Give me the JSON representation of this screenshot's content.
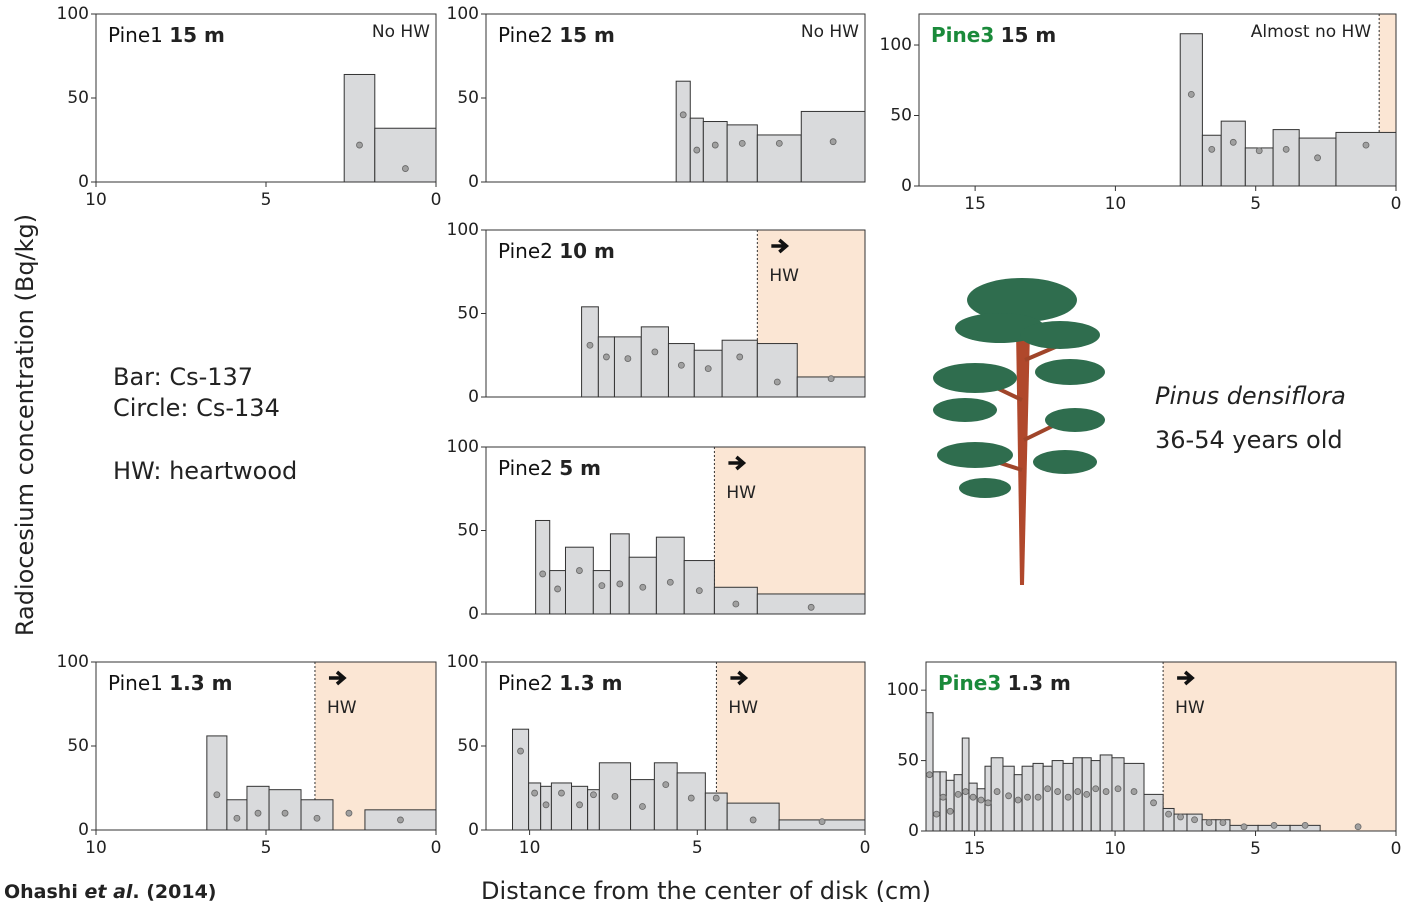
{
  "y_label": "Radiocesium concentration (Bq/kg)",
  "x_label": "Distance from the center of disk (cm)",
  "legend_text": [
    "Bar: Cs-137",
    "Circle: Cs-134",
    "HW: heartwood"
  ],
  "species": "Pinus densiflora",
  "age": "36-54 years old",
  "citation": {
    "author": "Ohashi",
    "etal": "et al",
    "year": ". (2014)"
  },
  "chart_data": [
    {
      "type": "histogram",
      "tree": "Pine1",
      "height": "15 m",
      "title_color": "#111111",
      "annotation": "No HW",
      "xlim": [
        10,
        0
      ],
      "xticks": [
        10,
        5,
        0
      ],
      "ylim": [
        0,
        100
      ],
      "yticks": [
        0,
        50,
        100
      ],
      "bins": [
        2.7,
        1.8,
        0
      ],
      "series": [
        {
          "color": "#d9dadc",
          "values": [
            64,
            32
          ]
        },
        {
          "color": "#a0a0a0",
          "values": [
            22,
            8
          ]
        }
      ]
    },
    {
      "type": "histogram",
      "tree": "Pine2",
      "height": "15 m",
      "title_color": "#111111",
      "annotation": "No HW",
      "xlim": [
        11.3,
        0
      ],
      "ylim": [
        0,
        100
      ],
      "yticks": [
        0,
        50,
        100
      ],
      "bins": [
        5.63,
        5.21,
        4.82,
        4.11,
        3.21,
        1.9,
        0
      ],
      "series": [
        {
          "color": "#d9dadc",
          "values": [
            60,
            38,
            36,
            34,
            28,
            42
          ]
        },
        {
          "color": "#a0a0a0",
          "values": [
            40,
            19,
            22,
            23,
            23,
            24
          ]
        }
      ]
    },
    {
      "type": "histogram",
      "tree": "Pine3",
      "height": "15 m",
      "title_color": "#1a8a3a",
      "annotation": "Almost no HW",
      "heartwood_from": 0.6,
      "heartwood_color": "#fbe6d4",
      "xlim": [
        17,
        0
      ],
      "xticks": [
        15,
        10,
        5,
        0
      ],
      "ylim": [
        0,
        122
      ],
      "yticks": [
        0,
        50,
        100
      ],
      "bins": [
        7.69,
        6.9,
        6.23,
        5.37,
        4.38,
        3.45,
        2.14,
        0
      ],
      "series": [
        {
          "color": "#d9dadc",
          "values": [
            108,
            36,
            46,
            27,
            40,
            34,
            38
          ]
        },
        {
          "color": "#a0a0a0",
          "values": [
            65,
            26,
            31,
            25,
            26,
            20,
            29
          ]
        }
      ]
    },
    {
      "type": "histogram",
      "tree": "Pine2",
      "height": "10 m",
      "title_color": "#111111",
      "annotation": "HW",
      "heartwood_from": 3.21,
      "heartwood_color": "#fbe6d4",
      "xlim": [
        11.3,
        0
      ],
      "ylim": [
        0,
        100
      ],
      "yticks": [
        0,
        50,
        100
      ],
      "bins": [
        8.45,
        7.95,
        7.47,
        6.67,
        5.86,
        5.09,
        4.26,
        3.21,
        2.02,
        0
      ],
      "series": [
        {
          "color": "#d9dadc",
          "values": [
            54,
            36,
            36,
            42,
            32,
            28,
            34,
            32,
            12
          ]
        },
        {
          "color": "#a0a0a0",
          "values": [
            31,
            24,
            23,
            27,
            19,
            17,
            24,
            9,
            11
          ]
        }
      ]
    },
    {
      "type": "histogram",
      "tree": "Pine2",
      "height": "5 m",
      "title_color": "#111111",
      "annotation": "HW",
      "heartwood_from": 4.49,
      "heartwood_color": "#fbe6d4",
      "xlim": [
        11.3,
        0
      ],
      "ylim": [
        0,
        100
      ],
      "yticks": [
        0,
        50,
        100
      ],
      "bins": [
        9.82,
        9.4,
        8.93,
        8.1,
        7.59,
        7.03,
        6.22,
        5.39,
        4.49,
        3.21,
        0
      ],
      "series": [
        {
          "color": "#d9dadc",
          "values": [
            56,
            26,
            40,
            26,
            48,
            34,
            46,
            32,
            16,
            12
          ]
        },
        {
          "color": "#a0a0a0",
          "values": [
            24,
            15,
            26,
            17,
            18,
            16,
            19,
            14,
            6,
            4
          ]
        }
      ]
    },
    {
      "type": "histogram",
      "tree": "Pine1",
      "height": "1.3 m",
      "title_color": "#111111",
      "annotation": "HW",
      "heartwood_from": 3.56,
      "heartwood_color": "#fbe6d4",
      "xlim": [
        10,
        0
      ],
      "xticks": [
        10,
        5,
        0
      ],
      "ylim": [
        0,
        100
      ],
      "yticks": [
        0,
        50,
        100
      ],
      "bins": [
        6.74,
        6.15,
        5.56,
        4.91,
        3.97,
        3.03,
        2.09,
        0
      ],
      "series": [
        {
          "color": "#d9dadc",
          "values": [
            56,
            18,
            26,
            24,
            18,
            null,
            12
          ]
        },
        {
          "color": "#a0a0a0",
          "values": [
            21,
            7,
            10,
            10,
            7,
            10,
            6
          ]
        }
      ]
    },
    {
      "type": "histogram",
      "tree": "Pine2",
      "height": "1.3 m",
      "title_color": "#111111",
      "annotation": "HW",
      "heartwood_from": 4.43,
      "heartwood_color": "#fbe6d4",
      "xlim": [
        11.3,
        0
      ],
      "xticks": [
        10,
        5,
        0
      ],
      "ylim": [
        0,
        100
      ],
      "yticks": [
        0,
        50,
        100
      ],
      "bins": [
        10.51,
        10.03,
        9.67,
        9.35,
        8.75,
        8.27,
        7.92,
        6.99,
        6.28,
        5.6,
        4.76,
        4.11,
        2.56,
        0
      ],
      "series": [
        {
          "color": "#d9dadc",
          "values": [
            60,
            28,
            26,
            28,
            26,
            24,
            40,
            30,
            40,
            34,
            22,
            16,
            6
          ]
        },
        {
          "color": "#a0a0a0",
          "values": [
            47,
            22,
            15,
            22,
            15,
            21,
            20,
            14,
            27,
            19,
            19,
            6,
            5
          ]
        }
      ]
    },
    {
      "type": "histogram",
      "tree": "Pine3",
      "height": "1.3 m",
      "title_color": "#1a8a3a",
      "annotation": "HW",
      "heartwood_from": 8.29,
      "heartwood_color": "#fbe6d4",
      "xlim": [
        16.73,
        0
      ],
      "xticks": [
        15,
        10,
        5,
        0
      ],
      "ylim": [
        0,
        120
      ],
      "yticks": [
        0,
        50,
        100
      ],
      "bins": [
        16.73,
        16.48,
        16.23,
        16.01,
        15.73,
        15.44,
        15.2,
        14.91,
        14.63,
        14.41,
        13.99,
        13.59,
        13.31,
        12.92,
        12.56,
        12.24,
        11.85,
        11.49,
        11.17,
        10.85,
        10.53,
        10.11,
        9.68,
        8.97,
        8.29,
        7.9,
        7.44,
        6.9,
        6.41,
        5.91,
        4.91,
        3.77,
        2.7,
        0
      ],
      "series": [
        {
          "color": "#d9dadc",
          "values": [
            84,
            42,
            42,
            36,
            40,
            66,
            34,
            30,
            46,
            52,
            46,
            40,
            46,
            48,
            46,
            50,
            48,
            52,
            52,
            50,
            54,
            52,
            48,
            26,
            16,
            12,
            12,
            8,
            8,
            4,
            4,
            4,
            null
          ]
        },
        {
          "color": "#a0a0a0",
          "values": [
            40,
            12,
            24,
            14,
            26,
            28,
            24,
            22,
            20,
            28,
            25,
            22,
            24,
            24,
            30,
            28,
            24,
            28,
            26,
            30,
            28,
            30,
            28,
            20,
            12,
            10,
            8,
            6,
            6,
            3,
            4,
            4,
            3
          ]
        }
      ]
    }
  ]
}
